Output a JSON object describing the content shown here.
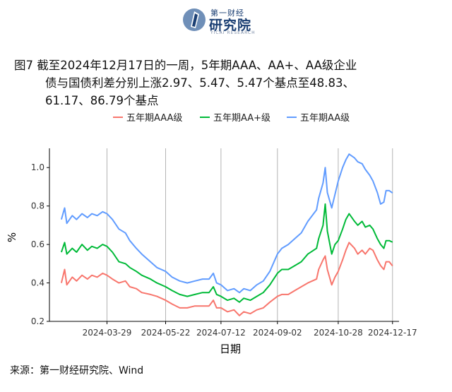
{
  "logo": {
    "top_text": "第一财经",
    "main_text": "研究院",
    "sub_text": "YICAI RESEARCH"
  },
  "caption": {
    "line1": "图7  截至2024年12月17日的一周，5年期AAA、AA+、AA级企业",
    "line2": "债与国债利差分别上涨2.97、5.47、5.47个基点至48.83、",
    "line3": "61.17、86.79个基点"
  },
  "source": "来源：第一财经研究院、Wind",
  "chart_data": {
    "type": "line",
    "xlabel": "日期",
    "ylabel": "%",
    "ylim": [
      0.2,
      1.1
    ],
    "yticks": [
      0.2,
      0.4,
      0.6,
      0.8,
      1.0
    ],
    "ytick_labels": [
      "0.2",
      "0.4",
      "0.6",
      "0.8",
      "1.0"
    ],
    "xlim": [
      "2024-02-05",
      "2024-12-23"
    ],
    "xticks": [
      "2024-03-29",
      "2024-05-22",
      "2024-07-12",
      "2024-09-02",
      "2024-10-28",
      "2024-12-17"
    ],
    "grid": true,
    "legend_position": "top",
    "series": [
      {
        "name": "五年期AAA级",
        "color": "#F8766D",
        "points": [
          [
            "2024-02-16",
            0.4
          ],
          [
            "2024-02-19",
            0.47
          ],
          [
            "2024-02-21",
            0.39
          ],
          [
            "2024-02-26",
            0.43
          ],
          [
            "2024-03-01",
            0.41
          ],
          [
            "2024-03-06",
            0.44
          ],
          [
            "2024-03-11",
            0.42
          ],
          [
            "2024-03-15",
            0.44
          ],
          [
            "2024-03-20",
            0.43
          ],
          [
            "2024-03-25",
            0.45
          ],
          [
            "2024-03-29",
            0.44
          ],
          [
            "2024-04-03",
            0.42
          ],
          [
            "2024-04-09",
            0.4
          ],
          [
            "2024-04-15",
            0.41
          ],
          [
            "2024-04-19",
            0.38
          ],
          [
            "2024-04-25",
            0.37
          ],
          [
            "2024-04-30",
            0.35
          ],
          [
            "2024-05-08",
            0.34
          ],
          [
            "2024-05-14",
            0.33
          ],
          [
            "2024-05-22",
            0.31
          ],
          [
            "2024-05-28",
            0.29
          ],
          [
            "2024-06-04",
            0.27
          ],
          [
            "2024-06-11",
            0.27
          ],
          [
            "2024-06-18",
            0.28
          ],
          [
            "2024-06-25",
            0.28
          ],
          [
            "2024-07-01",
            0.28
          ],
          [
            "2024-07-05",
            0.31
          ],
          [
            "2024-07-08",
            0.27
          ],
          [
            "2024-07-12",
            0.27
          ],
          [
            "2024-07-18",
            0.25
          ],
          [
            "2024-07-24",
            0.26
          ],
          [
            "2024-07-29",
            0.23
          ],
          [
            "2024-08-02",
            0.25
          ],
          [
            "2024-08-08",
            0.24
          ],
          [
            "2024-08-14",
            0.26
          ],
          [
            "2024-08-20",
            0.27
          ],
          [
            "2024-08-26",
            0.3
          ],
          [
            "2024-09-02",
            0.33
          ],
          [
            "2024-09-06",
            0.34
          ],
          [
            "2024-09-12",
            0.34
          ],
          [
            "2024-09-18",
            0.36
          ],
          [
            "2024-09-24",
            0.38
          ],
          [
            "2024-09-30",
            0.4
          ],
          [
            "2024-10-08",
            0.42
          ],
          [
            "2024-10-10",
            0.47
          ],
          [
            "2024-10-14",
            0.52
          ],
          [
            "2024-10-16",
            0.54
          ],
          [
            "2024-10-18",
            0.47
          ],
          [
            "2024-10-22",
            0.39
          ],
          [
            "2024-10-25",
            0.43
          ],
          [
            "2024-10-28",
            0.46
          ],
          [
            "2024-11-01",
            0.52
          ],
          [
            "2024-11-04",
            0.57
          ],
          [
            "2024-11-07",
            0.61
          ],
          [
            "2024-11-12",
            0.58
          ],
          [
            "2024-11-15",
            0.55
          ],
          [
            "2024-11-19",
            0.57
          ],
          [
            "2024-11-22",
            0.55
          ],
          [
            "2024-11-26",
            0.58
          ],
          [
            "2024-11-29",
            0.57
          ],
          [
            "2024-12-03",
            0.52
          ],
          [
            "2024-12-06",
            0.49
          ],
          [
            "2024-12-09",
            0.47
          ],
          [
            "2024-12-11",
            0.51
          ],
          [
            "2024-12-14",
            0.51
          ],
          [
            "2024-12-17",
            0.4883
          ]
        ]
      },
      {
        "name": "五年期AA+级",
        "color": "#00BA38",
        "points": [
          [
            "2024-02-16",
            0.56
          ],
          [
            "2024-02-19",
            0.61
          ],
          [
            "2024-02-21",
            0.55
          ],
          [
            "2024-02-26",
            0.58
          ],
          [
            "2024-03-01",
            0.56
          ],
          [
            "2024-03-06",
            0.6
          ],
          [
            "2024-03-11",
            0.57
          ],
          [
            "2024-03-15",
            0.59
          ],
          [
            "2024-03-20",
            0.58
          ],
          [
            "2024-03-25",
            0.6
          ],
          [
            "2024-03-29",
            0.59
          ],
          [
            "2024-04-03",
            0.56
          ],
          [
            "2024-04-09",
            0.51
          ],
          [
            "2024-04-15",
            0.5
          ],
          [
            "2024-04-19",
            0.48
          ],
          [
            "2024-04-25",
            0.46
          ],
          [
            "2024-04-30",
            0.44
          ],
          [
            "2024-05-08",
            0.42
          ],
          [
            "2024-05-14",
            0.4
          ],
          [
            "2024-05-22",
            0.38
          ],
          [
            "2024-05-28",
            0.36
          ],
          [
            "2024-06-04",
            0.34
          ],
          [
            "2024-06-11",
            0.33
          ],
          [
            "2024-06-18",
            0.34
          ],
          [
            "2024-06-25",
            0.35
          ],
          [
            "2024-07-01",
            0.35
          ],
          [
            "2024-07-05",
            0.38
          ],
          [
            "2024-07-08",
            0.34
          ],
          [
            "2024-07-12",
            0.33
          ],
          [
            "2024-07-18",
            0.31
          ],
          [
            "2024-07-24",
            0.32
          ],
          [
            "2024-07-29",
            0.3
          ],
          [
            "2024-08-02",
            0.32
          ],
          [
            "2024-08-08",
            0.31
          ],
          [
            "2024-08-14",
            0.33
          ],
          [
            "2024-08-20",
            0.35
          ],
          [
            "2024-08-26",
            0.39
          ],
          [
            "2024-09-02",
            0.45
          ],
          [
            "2024-09-06",
            0.47
          ],
          [
            "2024-09-12",
            0.47
          ],
          [
            "2024-09-18",
            0.49
          ],
          [
            "2024-09-24",
            0.51
          ],
          [
            "2024-09-30",
            0.55
          ],
          [
            "2024-10-08",
            0.58
          ],
          [
            "2024-10-10",
            0.63
          ],
          [
            "2024-10-14",
            0.7
          ],
          [
            "2024-10-16",
            0.81
          ],
          [
            "2024-10-18",
            0.67
          ],
          [
            "2024-10-22",
            0.55
          ],
          [
            "2024-10-25",
            0.6
          ],
          [
            "2024-10-28",
            0.62
          ],
          [
            "2024-11-01",
            0.68
          ],
          [
            "2024-11-04",
            0.73
          ],
          [
            "2024-11-07",
            0.76
          ],
          [
            "2024-11-12",
            0.72
          ],
          [
            "2024-11-15",
            0.7
          ],
          [
            "2024-11-19",
            0.72
          ],
          [
            "2024-11-22",
            0.69
          ],
          [
            "2024-11-26",
            0.7
          ],
          [
            "2024-11-29",
            0.68
          ],
          [
            "2024-12-03",
            0.63
          ],
          [
            "2024-12-06",
            0.6
          ],
          [
            "2024-12-09",
            0.58
          ],
          [
            "2024-12-11",
            0.62
          ],
          [
            "2024-12-14",
            0.62
          ],
          [
            "2024-12-17",
            0.6117
          ]
        ]
      },
      {
        "name": "五年期AA级",
        "color": "#619CFF",
        "points": [
          [
            "2024-02-16",
            0.73
          ],
          [
            "2024-02-19",
            0.79
          ],
          [
            "2024-02-21",
            0.71
          ],
          [
            "2024-02-26",
            0.75
          ],
          [
            "2024-03-01",
            0.73
          ],
          [
            "2024-03-06",
            0.76
          ],
          [
            "2024-03-11",
            0.74
          ],
          [
            "2024-03-15",
            0.76
          ],
          [
            "2024-03-20",
            0.75
          ],
          [
            "2024-03-25",
            0.77
          ],
          [
            "2024-03-29",
            0.76
          ],
          [
            "2024-04-03",
            0.73
          ],
          [
            "2024-04-09",
            0.68
          ],
          [
            "2024-04-15",
            0.66
          ],
          [
            "2024-04-19",
            0.62
          ],
          [
            "2024-04-25",
            0.58
          ],
          [
            "2024-04-30",
            0.55
          ],
          [
            "2024-05-08",
            0.51
          ],
          [
            "2024-05-14",
            0.48
          ],
          [
            "2024-05-22",
            0.46
          ],
          [
            "2024-05-28",
            0.43
          ],
          [
            "2024-06-04",
            0.41
          ],
          [
            "2024-06-11",
            0.4
          ],
          [
            "2024-06-18",
            0.41
          ],
          [
            "2024-06-25",
            0.42
          ],
          [
            "2024-07-01",
            0.42
          ],
          [
            "2024-07-05",
            0.45
          ],
          [
            "2024-07-08",
            0.4
          ],
          [
            "2024-07-12",
            0.39
          ],
          [
            "2024-07-18",
            0.36
          ],
          [
            "2024-07-24",
            0.37
          ],
          [
            "2024-07-29",
            0.35
          ],
          [
            "2024-08-02",
            0.37
          ],
          [
            "2024-08-08",
            0.36
          ],
          [
            "2024-08-14",
            0.39
          ],
          [
            "2024-08-20",
            0.41
          ],
          [
            "2024-08-26",
            0.46
          ],
          [
            "2024-09-02",
            0.55
          ],
          [
            "2024-09-06",
            0.58
          ],
          [
            "2024-09-12",
            0.6
          ],
          [
            "2024-09-18",
            0.63
          ],
          [
            "2024-09-24",
            0.66
          ],
          [
            "2024-09-30",
            0.72
          ],
          [
            "2024-10-08",
            0.78
          ],
          [
            "2024-10-10",
            0.84
          ],
          [
            "2024-10-14",
            0.92
          ],
          [
            "2024-10-16",
            1.0
          ],
          [
            "2024-10-18",
            0.87
          ],
          [
            "2024-10-22",
            0.79
          ],
          [
            "2024-10-25",
            0.86
          ],
          [
            "2024-10-28",
            0.93
          ],
          [
            "2024-11-01",
            1.0
          ],
          [
            "2024-11-04",
            1.04
          ],
          [
            "2024-11-07",
            1.07
          ],
          [
            "2024-11-12",
            1.05
          ],
          [
            "2024-11-15",
            1.03
          ],
          [
            "2024-11-19",
            1.02
          ],
          [
            "2024-11-22",
            0.99
          ],
          [
            "2024-11-26",
            0.96
          ],
          [
            "2024-11-29",
            0.93
          ],
          [
            "2024-12-03",
            0.87
          ],
          [
            "2024-12-06",
            0.81
          ],
          [
            "2024-12-09",
            0.82
          ],
          [
            "2024-12-11",
            0.88
          ],
          [
            "2024-12-14",
            0.88
          ],
          [
            "2024-12-17",
            0.8679
          ]
        ]
      }
    ]
  }
}
